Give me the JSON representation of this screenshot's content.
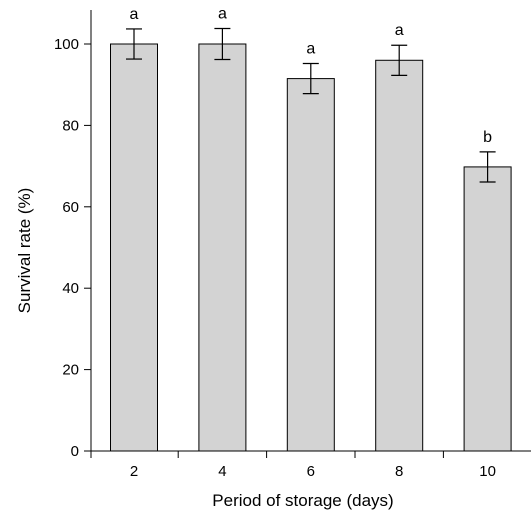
{
  "chart_data": {
    "type": "bar",
    "xlabel": "Period of storage (days)",
    "ylabel": "Survival rate (%)",
    "ylim": [
      0,
      105
    ],
    "yticks": [
      0,
      20,
      40,
      60,
      80,
      100
    ],
    "categories": [
      "2",
      "4",
      "6",
      "8",
      "10"
    ],
    "values": [
      100,
      100,
      91.5,
      96,
      69.8
    ],
    "errors": [
      3.7,
      3.8,
      3.7,
      3.7,
      3.7
    ],
    "significance_labels": [
      "a",
      "a",
      "a",
      "a",
      "b"
    ],
    "bar_color": "#d3d3d3",
    "bar_edge_color": "#000000",
    "grid": false,
    "legend": "none"
  }
}
